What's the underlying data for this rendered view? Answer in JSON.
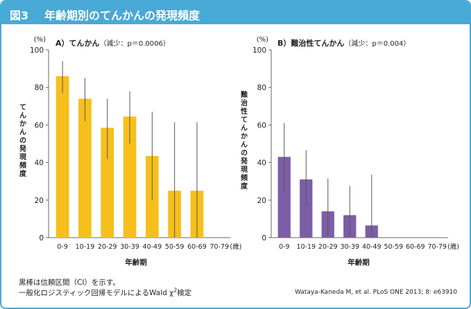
{
  "header": {
    "figure_label": "図3",
    "title": "年齢期別のてんかんの発現頻度"
  },
  "colors": {
    "header_bg": "#49a9d6",
    "bar_a": "#f6bf1c",
    "bar_b": "#7b5ea7",
    "error_bar": "#555555",
    "axis": "#666666",
    "text": "#222222"
  },
  "chart_data": [
    {
      "type": "bar",
      "panel": "A",
      "title_main": "A）てんかん",
      "title_sub": "（減少：p＝0.0006）",
      "ylabel": "てんかんの発現頻度",
      "yunit": "(%)",
      "xlabel": "年齢期",
      "xunit": "(歳)",
      "ylim": [
        0,
        100
      ],
      "yticks": [
        0,
        20,
        40,
        60,
        80,
        100
      ],
      "categories": [
        "0-9",
        "10-19",
        "20-29",
        "30-39",
        "40-49",
        "50-59",
        "60-69",
        "70-79"
      ],
      "values": [
        86,
        74,
        58.5,
        64.5,
        43.5,
        25,
        25,
        null
      ],
      "ci_low": [
        77,
        62,
        42,
        50,
        20,
        0,
        0,
        null
      ],
      "ci_high": [
        94,
        85,
        74,
        78,
        67,
        61.5,
        61.5,
        null
      ],
      "bar_color": "#f6bf1c"
    },
    {
      "type": "bar",
      "panel": "B",
      "title_main": "B）難治性てんかん",
      "title_sub": "（減少：p＝0.004）",
      "ylabel": "難治性てんかんの発現頻度",
      "yunit": "(%)",
      "xlabel": "年齢期",
      "xunit": "(歳)",
      "ylim": [
        0,
        100
      ],
      "yticks": [
        0,
        20,
        40,
        60,
        80,
        100
      ],
      "categories": [
        "0-9",
        "10-19",
        "20-29",
        "30-39",
        "40-49",
        "50-59",
        "60-69",
        "70-79"
      ],
      "values": [
        43,
        31,
        14,
        12,
        6.5,
        null,
        null,
        null
      ],
      "ci_low": [
        24,
        17,
        1,
        1,
        0,
        null,
        null,
        null
      ],
      "ci_high": [
        61,
        46.5,
        31.5,
        27.5,
        33.5,
        null,
        null,
        null
      ],
      "bar_color": "#7b5ea7"
    }
  ],
  "footer": {
    "note_line1": "黒棒は信頼区間（CI）を示す。",
    "note_line2_pre": "一般化ロジスティック回帰モデルによるWald χ",
    "note_line2_sup": "2",
    "note_line2_post": "検定",
    "citation": "Wataya-Kaneda M, et al. PLoS ONE 2013; 8: e63910"
  }
}
